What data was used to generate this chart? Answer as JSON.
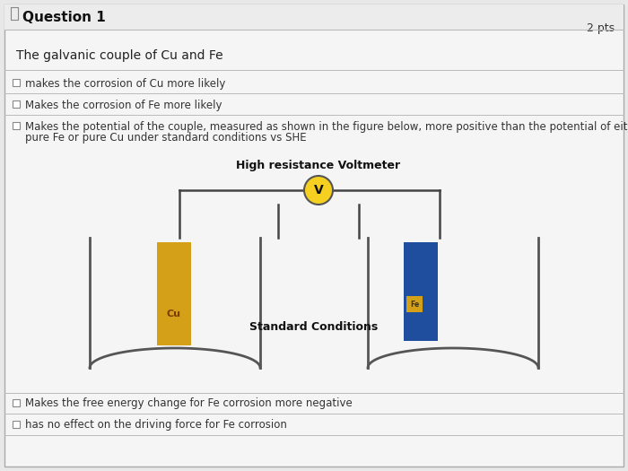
{
  "title": "Question 1",
  "pts_label": "2 pts",
  "question_text": "The galvanic couple of Cu and Fe",
  "options": [
    "makes the corrosion of Cu more likely",
    "Makes the corrosion of Fe more likely",
    "Makes the potential of the couple, measured as shown in the figure below, more positive than the potential of either",
    "pure Fe or pure Cu under standard conditions vs SHE",
    "Makes the free energy change for Fe corrosion more negative",
    "has no effect on the driving force for Fe corrosion"
  ],
  "voltmeter_label": "High resistance Voltmeter",
  "voltmeter_text": "V",
  "standard_conditions_label": "Standard Conditions",
  "cu_color": "#D4A017",
  "cu_label": "Cu",
  "fe_color": "#1F4E9E",
  "fe_label": "Fe",
  "fe_small_color": "#D4A017",
  "background_color": "#E8E8E8",
  "card_color": "#F5F5F5",
  "wire_color": "#444444",
  "beaker_color": "#555555",
  "voltmeter_circle_color": "#F5D020",
  "divider_color": "#BBBBBB",
  "title_fontsize": 11,
  "question_fontsize": 10,
  "option_fontsize": 8.5,
  "diagram_label_fontsize": 9,
  "voltmeter_fontsize": 9
}
